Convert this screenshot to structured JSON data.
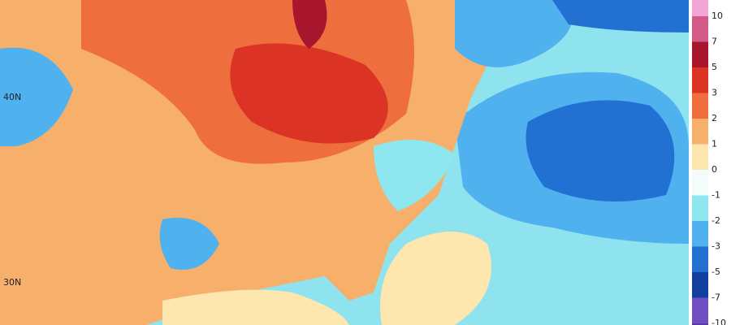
{
  "map": {
    "lat_labels": [
      "40N",
      "30N"
    ]
  },
  "colorbar": {
    "labels": [
      "10",
      "7",
      "5",
      "3",
      "2",
      "1",
      "0",
      "-1",
      "-2",
      "-3",
      "-5",
      "-7",
      "-10"
    ],
    "colors": [
      "#f3a6d6",
      "#d35a86",
      "#a8162e",
      "#dc3424",
      "#ef6e3e",
      "#f7b06c",
      "#fde7ae",
      "#f4fbfb",
      "#8ee6ef",
      "#4fb2ef",
      "#2270d2",
      "#123f9e",
      "#6f4fc2",
      "#5a3aa8"
    ]
  }
}
